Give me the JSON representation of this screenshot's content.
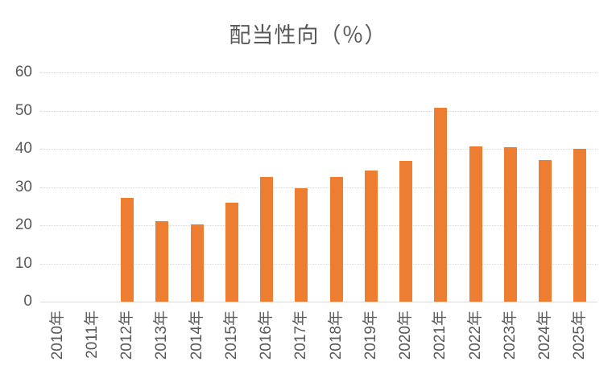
{
  "title": "配当性向（％）",
  "colors": {
    "bar": "#ed7d31",
    "gridline": "#d9d9d9",
    "axis_text": "#595959",
    "title_text": "#595959",
    "background": "#ffffff"
  },
  "chart_data": {
    "type": "bar",
    "title": "配当性向（％）",
    "categories": [
      "2010年",
      "2011年",
      "2012年",
      "2013年",
      "2014年",
      "2015年",
      "2016年",
      "2017年",
      "2018年",
      "2019年",
      "2020年",
      "2021年",
      "2022年",
      "2023年",
      "2024年",
      "2025年"
    ],
    "values": [
      0,
      0,
      27.2,
      21.1,
      20.3,
      26.0,
      32.6,
      29.7,
      32.6,
      34.4,
      36.9,
      50.8,
      40.6,
      40.4,
      37.1,
      40.1
    ],
    "xlabel": "",
    "ylabel": "",
    "ylim": [
      0,
      60
    ],
    "yticks": [
      0,
      10,
      20,
      30,
      40,
      50,
      60
    ],
    "grid": true,
    "gridline_style": "dotted",
    "legend": false,
    "bar_color": "#ed7d31",
    "x_tick_rotation": -90
  }
}
